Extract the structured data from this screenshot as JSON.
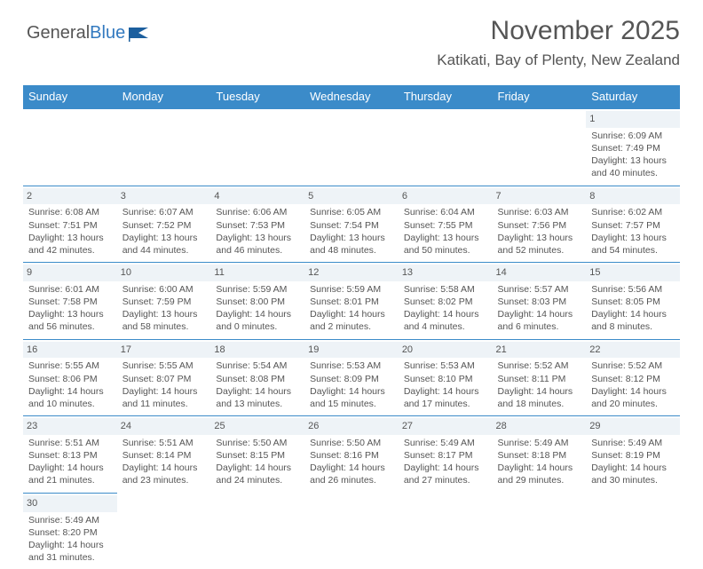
{
  "logo": {
    "wordA": "General",
    "wordB": "Blue"
  },
  "title": "November 2025",
  "subtitle": "Katikati, Bay of Plenty, New Zealand",
  "colors": {
    "header_bg": "#3b8bc9",
    "header_text": "#ffffff",
    "cell_border": "#3b8bc9",
    "daynum_bg": "#eef3f7",
    "text": "#555555",
    "blue": "#3279bf"
  },
  "dayHeaders": [
    "Sunday",
    "Monday",
    "Tuesday",
    "Wednesday",
    "Thursday",
    "Friday",
    "Saturday"
  ],
  "weeks": [
    [
      null,
      null,
      null,
      null,
      null,
      null,
      {
        "n": "1",
        "sunrise": "Sunrise: 6:09 AM",
        "sunset": "Sunset: 7:49 PM",
        "daylight": "Daylight: 13 hours and 40 minutes."
      }
    ],
    [
      {
        "n": "2",
        "sunrise": "Sunrise: 6:08 AM",
        "sunset": "Sunset: 7:51 PM",
        "daylight": "Daylight: 13 hours and 42 minutes."
      },
      {
        "n": "3",
        "sunrise": "Sunrise: 6:07 AM",
        "sunset": "Sunset: 7:52 PM",
        "daylight": "Daylight: 13 hours and 44 minutes."
      },
      {
        "n": "4",
        "sunrise": "Sunrise: 6:06 AM",
        "sunset": "Sunset: 7:53 PM",
        "daylight": "Daylight: 13 hours and 46 minutes."
      },
      {
        "n": "5",
        "sunrise": "Sunrise: 6:05 AM",
        "sunset": "Sunset: 7:54 PM",
        "daylight": "Daylight: 13 hours and 48 minutes."
      },
      {
        "n": "6",
        "sunrise": "Sunrise: 6:04 AM",
        "sunset": "Sunset: 7:55 PM",
        "daylight": "Daylight: 13 hours and 50 minutes."
      },
      {
        "n": "7",
        "sunrise": "Sunrise: 6:03 AM",
        "sunset": "Sunset: 7:56 PM",
        "daylight": "Daylight: 13 hours and 52 minutes."
      },
      {
        "n": "8",
        "sunrise": "Sunrise: 6:02 AM",
        "sunset": "Sunset: 7:57 PM",
        "daylight": "Daylight: 13 hours and 54 minutes."
      }
    ],
    [
      {
        "n": "9",
        "sunrise": "Sunrise: 6:01 AM",
        "sunset": "Sunset: 7:58 PM",
        "daylight": "Daylight: 13 hours and 56 minutes."
      },
      {
        "n": "10",
        "sunrise": "Sunrise: 6:00 AM",
        "sunset": "Sunset: 7:59 PM",
        "daylight": "Daylight: 13 hours and 58 minutes."
      },
      {
        "n": "11",
        "sunrise": "Sunrise: 5:59 AM",
        "sunset": "Sunset: 8:00 PM",
        "daylight": "Daylight: 14 hours and 0 minutes."
      },
      {
        "n": "12",
        "sunrise": "Sunrise: 5:59 AM",
        "sunset": "Sunset: 8:01 PM",
        "daylight": "Daylight: 14 hours and 2 minutes."
      },
      {
        "n": "13",
        "sunrise": "Sunrise: 5:58 AM",
        "sunset": "Sunset: 8:02 PM",
        "daylight": "Daylight: 14 hours and 4 minutes."
      },
      {
        "n": "14",
        "sunrise": "Sunrise: 5:57 AM",
        "sunset": "Sunset: 8:03 PM",
        "daylight": "Daylight: 14 hours and 6 minutes."
      },
      {
        "n": "15",
        "sunrise": "Sunrise: 5:56 AM",
        "sunset": "Sunset: 8:05 PM",
        "daylight": "Daylight: 14 hours and 8 minutes."
      }
    ],
    [
      {
        "n": "16",
        "sunrise": "Sunrise: 5:55 AM",
        "sunset": "Sunset: 8:06 PM",
        "daylight": "Daylight: 14 hours and 10 minutes."
      },
      {
        "n": "17",
        "sunrise": "Sunrise: 5:55 AM",
        "sunset": "Sunset: 8:07 PM",
        "daylight": "Daylight: 14 hours and 11 minutes."
      },
      {
        "n": "18",
        "sunrise": "Sunrise: 5:54 AM",
        "sunset": "Sunset: 8:08 PM",
        "daylight": "Daylight: 14 hours and 13 minutes."
      },
      {
        "n": "19",
        "sunrise": "Sunrise: 5:53 AM",
        "sunset": "Sunset: 8:09 PM",
        "daylight": "Daylight: 14 hours and 15 minutes."
      },
      {
        "n": "20",
        "sunrise": "Sunrise: 5:53 AM",
        "sunset": "Sunset: 8:10 PM",
        "daylight": "Daylight: 14 hours and 17 minutes."
      },
      {
        "n": "21",
        "sunrise": "Sunrise: 5:52 AM",
        "sunset": "Sunset: 8:11 PM",
        "daylight": "Daylight: 14 hours and 18 minutes."
      },
      {
        "n": "22",
        "sunrise": "Sunrise: 5:52 AM",
        "sunset": "Sunset: 8:12 PM",
        "daylight": "Daylight: 14 hours and 20 minutes."
      }
    ],
    [
      {
        "n": "23",
        "sunrise": "Sunrise: 5:51 AM",
        "sunset": "Sunset: 8:13 PM",
        "daylight": "Daylight: 14 hours and 21 minutes."
      },
      {
        "n": "24",
        "sunrise": "Sunrise: 5:51 AM",
        "sunset": "Sunset: 8:14 PM",
        "daylight": "Daylight: 14 hours and 23 minutes."
      },
      {
        "n": "25",
        "sunrise": "Sunrise: 5:50 AM",
        "sunset": "Sunset: 8:15 PM",
        "daylight": "Daylight: 14 hours and 24 minutes."
      },
      {
        "n": "26",
        "sunrise": "Sunrise: 5:50 AM",
        "sunset": "Sunset: 8:16 PM",
        "daylight": "Daylight: 14 hours and 26 minutes."
      },
      {
        "n": "27",
        "sunrise": "Sunrise: 5:49 AM",
        "sunset": "Sunset: 8:17 PM",
        "daylight": "Daylight: 14 hours and 27 minutes."
      },
      {
        "n": "28",
        "sunrise": "Sunrise: 5:49 AM",
        "sunset": "Sunset: 8:18 PM",
        "daylight": "Daylight: 14 hours and 29 minutes."
      },
      {
        "n": "29",
        "sunrise": "Sunrise: 5:49 AM",
        "sunset": "Sunset: 8:19 PM",
        "daylight": "Daylight: 14 hours and 30 minutes."
      }
    ],
    [
      {
        "n": "30",
        "sunrise": "Sunrise: 5:49 AM",
        "sunset": "Sunset: 8:20 PM",
        "daylight": "Daylight: 14 hours and 31 minutes."
      },
      null,
      null,
      null,
      null,
      null,
      null
    ]
  ]
}
